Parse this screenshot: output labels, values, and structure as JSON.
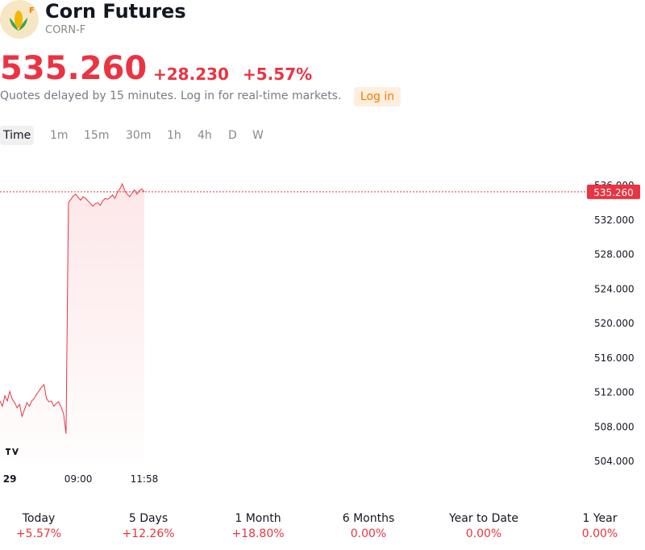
{
  "header": {
    "title": "Corn Futures",
    "symbol": "CORN-F",
    "logo_badge": "F",
    "price": "535.260",
    "change": "+28.230",
    "change_percent": "+5.57%",
    "notice": "Quotes delayed by 15 minutes. Log in for real-time markets.",
    "login": "Log in"
  },
  "tabs": [
    "Time",
    "1m",
    "15m",
    "30m",
    "1h",
    "4h",
    "D",
    "W"
  ],
  "chart_data": {
    "type": "line",
    "series": [
      {
        "name": "CORN-F",
        "color": "#eb3341",
        "values": [
          511.0,
          510.4,
          511.6,
          511.0,
          512.1,
          511.2,
          510.8,
          510.2,
          510.6,
          509.2,
          510.0,
          510.8,
          510.4,
          511.0,
          511.3,
          511.8,
          512.2,
          512.6,
          512.9,
          511.3,
          510.9,
          511.0,
          510.4,
          510.7,
          510.9,
          510.3,
          509.5,
          507.2,
          534.0,
          534.4,
          534.8,
          535.0,
          534.6,
          534.3,
          534.7,
          534.5,
          534.2,
          533.9,
          533.6,
          533.9,
          534.0,
          533.7,
          534.2,
          534.5,
          534.4,
          534.6,
          534.9,
          534.5,
          535.2,
          535.6,
          536.2,
          535.4,
          535.0,
          534.7,
          535.1,
          535.5,
          535.0,
          535.4,
          535.6,
          535.26
        ]
      }
    ],
    "xlim": [
      0,
      240
    ],
    "xticks": [
      {
        "value": 4,
        "label": "29"
      },
      {
        "value": 32,
        "label": "09:00"
      },
      {
        "value": 59,
        "label": "11:58"
      }
    ],
    "ylim": [
      504,
      536
    ],
    "yticks": [
      {
        "value": 504,
        "label": "504.000"
      },
      {
        "value": 508,
        "label": "508.000"
      },
      {
        "value": 512,
        "label": "512.000"
      },
      {
        "value": 516,
        "label": "516.000"
      },
      {
        "value": 520,
        "label": "520.000"
      },
      {
        "value": 524,
        "label": "524.000"
      },
      {
        "value": 528,
        "label": "528.000"
      },
      {
        "value": 532,
        "label": "532.000"
      },
      {
        "value": 536,
        "label": "536.000"
      }
    ]
  },
  "periods": [
    {
      "label": "Today",
      "value": "+5.57%"
    },
    {
      "label": "5 Days",
      "value": "+12.26%"
    },
    {
      "label": "1 Month",
      "value": "+18.80%"
    },
    {
      "label": "6 Months",
      "value": "0.00%"
    },
    {
      "label": "Year to Date",
      "value": "0.00%"
    },
    {
      "label": "1 Year",
      "value": "0.00%"
    }
  ]
}
